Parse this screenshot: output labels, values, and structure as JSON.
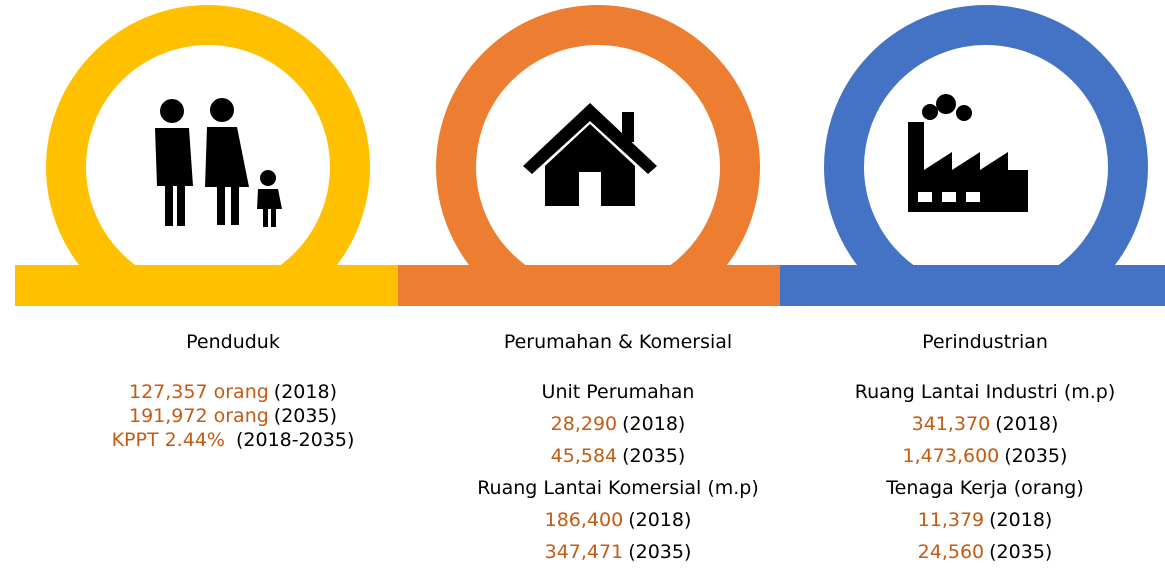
{
  "panels": [
    {
      "title": "Penduduk",
      "lines": [
        {
          "orange": "127,357 orang",
          "black": "(2018)"
        },
        {
          "orange": "191,972 orang",
          "black": "(2035)"
        },
        {
          "orange": "KPPT 2.44%",
          "black": " (2018-2035)"
        }
      ]
    },
    {
      "title": "Perumahan & Komersial",
      "lines": [
        {
          "black": "Unit Perumahan"
        },
        {
          "orange": "28,290",
          "black": "(2018)"
        },
        {
          "orange": "45,584",
          "black": "(2035)"
        },
        {
          "black": "Ruang Lantai Komersial (m.p)"
        },
        {
          "orange": "186,400",
          "black": "(2018)"
        },
        {
          "orange": "347,471",
          "black": "(2035)"
        }
      ]
    },
    {
      "title": "Perindustrian",
      "lines": [
        {
          "black": "Ruang Lantai Industri (m.p)"
        },
        {
          "orange": "341,370",
          "black": "(2018)"
        },
        {
          "orange": "1,473,600",
          "black": "(2035)"
        },
        {
          "black": "Tenaga Kerja (orang)"
        },
        {
          "orange": "11,379",
          "black": "(2018)"
        },
        {
          "orange": "24,560",
          "black": "(2035)"
        }
      ]
    }
  ]
}
